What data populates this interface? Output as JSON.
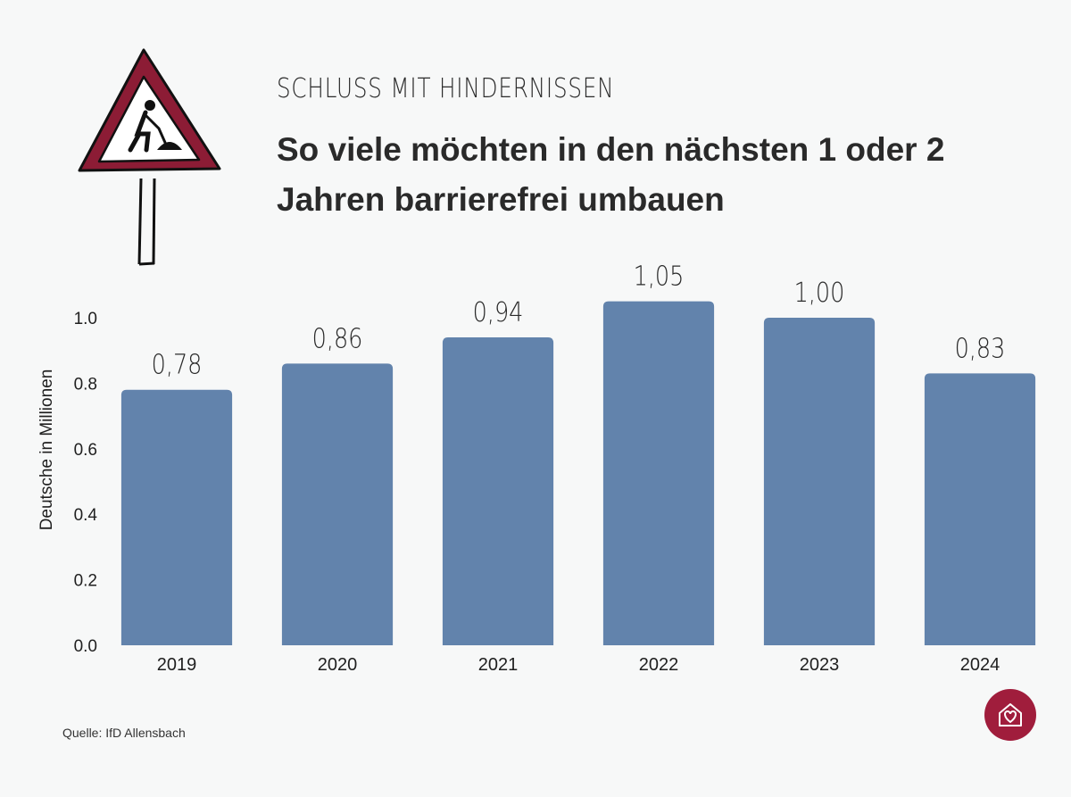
{
  "header": {
    "kicker": "SCHLUSS MIT HINDERNISSEN",
    "title": "So viele möchten in den nächsten 1 oder 2 Jahren barrierefrei umbauen"
  },
  "footer": {
    "source": "Quelle: IfD Allensbach"
  },
  "icons": {
    "sign": "construction-sign-icon",
    "logo": "house-heart-icon"
  },
  "colors": {
    "bar": "#6283ac",
    "accent": "#a01d3c",
    "background": "#f7f8f8"
  },
  "chart_data": {
    "type": "bar",
    "title": "So viele möchten in den nächsten 1 oder 2 Jahren barrierefrei umbauen",
    "xlabel": "",
    "ylabel": "Deutsche in Millionen",
    "categories": [
      "2019",
      "2020",
      "2021",
      "2022",
      "2023",
      "2024"
    ],
    "values": [
      0.78,
      0.86,
      0.94,
      1.05,
      1.0,
      0.83
    ],
    "value_labels": [
      "0,78",
      "0,86",
      "0,94",
      "1,05",
      "1,00",
      "0,83"
    ],
    "yticks": [
      0.0,
      0.2,
      0.4,
      0.6,
      0.8,
      1.0
    ],
    "ytick_labels": [
      "0.0",
      "0.2",
      "0.4",
      "0.6",
      "0.8",
      "1.0"
    ],
    "ylim": [
      0,
      1.05
    ],
    "grid": false
  }
}
